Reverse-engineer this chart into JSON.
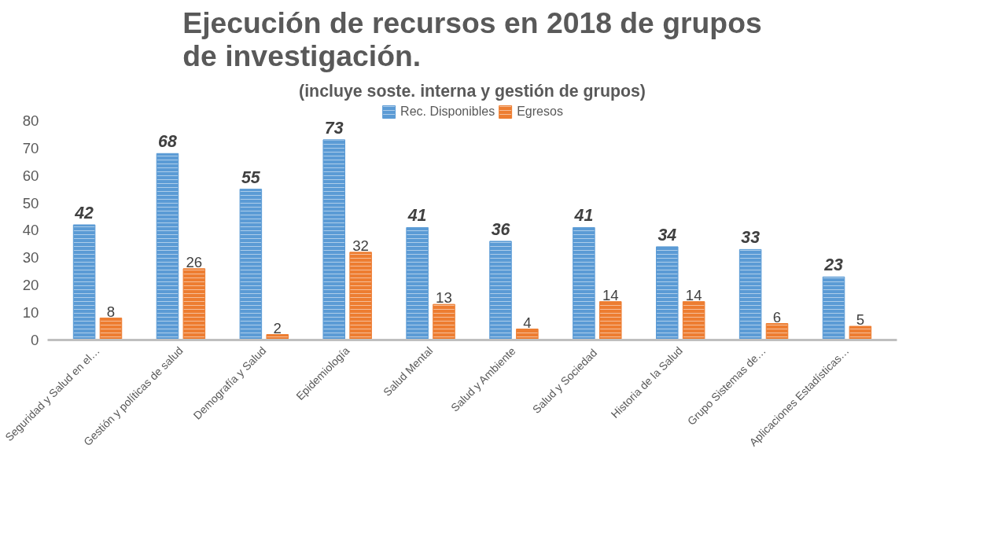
{
  "chart_data": {
    "type": "bar",
    "title": "Ejecución de recursos en 2018 de grupos\nde investigación.",
    "subtitle": "(incluye soste. interna y gestión de grupos)",
    "categories": [
      "Seguridad y Salud en el…",
      "Gestión y políticas de salud",
      "Demografía y Salud",
      "Epidemiología",
      "Salud Mental",
      "Salud y Ambiente",
      "Salud y  Sociedad",
      "Historia de la Salud",
      "Grupo Sistemas de…",
      "Aplicaciones Estadísticas…"
    ],
    "series": [
      {
        "name": "Rec. Disponibles",
        "color": "#5b9bd5",
        "values": [
          42,
          68,
          55,
          73,
          41,
          36,
          41,
          34,
          33,
          23
        ]
      },
      {
        "name": "Egresos",
        "color": "#ed7d31",
        "values": [
          8,
          26,
          2,
          32,
          13,
          4,
          14,
          14,
          6,
          5
        ]
      }
    ],
    "ylim": [
      0,
      86
    ],
    "yticks": [
      0,
      10,
      20,
      30,
      40,
      50,
      60,
      70,
      80
    ],
    "data_labels": true,
    "legend": "top"
  }
}
